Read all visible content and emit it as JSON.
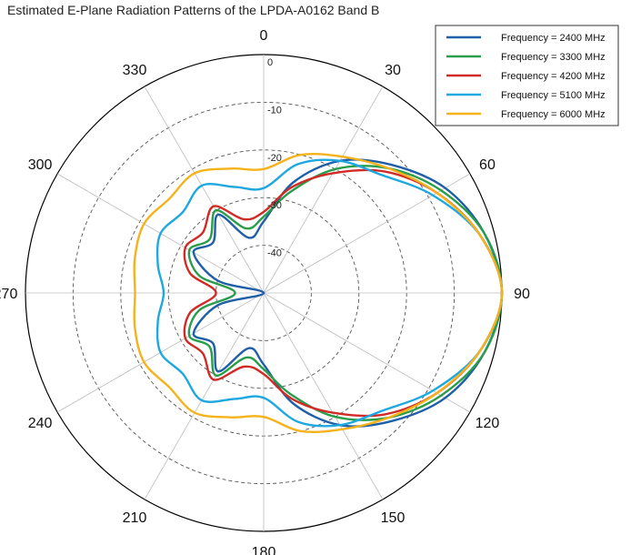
{
  "chart_data": {
    "type": "line",
    "subtype": "polar",
    "title": "Estimated E-Plane Radiation Patterns of the LPDA-A0162 Band B",
    "theta_zero": "top",
    "theta_direction": "clockwise",
    "angle_ticks": [
      0,
      30,
      60,
      90,
      120,
      150,
      180,
      210,
      240,
      270,
      300,
      330
    ],
    "angle_tick_labels": [
      "0",
      "30",
      "60",
      "90",
      "120",
      "150",
      "180",
      "210",
      "240",
      "270",
      "300",
      "330"
    ],
    "r_range": [
      -50,
      0
    ],
    "r_ticks": [
      0,
      -10,
      -20,
      -30,
      -40
    ],
    "r_tick_labels": [
      "0",
      "-10",
      "-20",
      "-30",
      "-40"
    ],
    "grid": true,
    "legend_position": "top-right",
    "series": [
      {
        "name": "Frequency = 2400 MHz",
        "color": "#1f5fa8",
        "theta": [
          0,
          15,
          30,
          45,
          60,
          75,
          90,
          105,
          120,
          135,
          150,
          165,
          180,
          195,
          210,
          225,
          240,
          255,
          270,
          285,
          300,
          315,
          330,
          345,
          360
        ],
        "r": [
          -35,
          -26,
          -18,
          -12,
          -6,
          -2,
          0,
          -2,
          -6,
          -12,
          -18,
          -26,
          -35,
          -38,
          -31,
          -35,
          -33,
          -40,
          -50,
          -40,
          -33,
          -35,
          -31,
          -38,
          -35
        ]
      },
      {
        "name": "Frequency = 3300 MHz",
        "color": "#2a9d4a",
        "theta": [
          0,
          15,
          30,
          45,
          60,
          75,
          90,
          105,
          120,
          135,
          150,
          165,
          180,
          195,
          210,
          225,
          240,
          255,
          270,
          285,
          300,
          315,
          330,
          345,
          360
        ],
        "r": [
          -34,
          -28,
          -20,
          -13,
          -7,
          -2,
          0,
          -2,
          -7,
          -13,
          -20,
          -28,
          -34,
          -36,
          -30,
          -34,
          -32,
          -36,
          -44,
          -36,
          -32,
          -34,
          -30,
          -36,
          -34
        ]
      },
      {
        "name": "Frequency = 4200 MHz",
        "color": "#d02b27",
        "theta": [
          0,
          15,
          30,
          45,
          60,
          75,
          90,
          105,
          120,
          135,
          150,
          165,
          180,
          195,
          210,
          225,
          240,
          255,
          270,
          285,
          300,
          315,
          330,
          345,
          360
        ],
        "r": [
          -33,
          -27,
          -21,
          -14,
          -8,
          -3,
          0,
          -3,
          -8,
          -14,
          -21,
          -27,
          -33,
          -34,
          -29,
          -32,
          -31,
          -34,
          -40,
          -34,
          -31,
          -32,
          -29,
          -34,
          -33
        ]
      },
      {
        "name": "Frequency = 5100 MHz",
        "color": "#1fa8e0",
        "theta": [
          0,
          15,
          30,
          45,
          60,
          75,
          90,
          105,
          120,
          135,
          150,
          165,
          180,
          195,
          210,
          225,
          240,
          255,
          270,
          285,
          300,
          315,
          330,
          345,
          360
        ],
        "r": [
          -28,
          -22,
          -18,
          -15,
          -9,
          -3,
          0,
          -3,
          -9,
          -15,
          -18,
          -22,
          -28,
          -27,
          -24,
          -26,
          -25,
          -27,
          -29,
          -27,
          -25,
          -26,
          -24,
          -27,
          -28
        ]
      },
      {
        "name": "Frequency = 6000 MHz",
        "color": "#f5b21b",
        "theta": [
          0,
          15,
          30,
          45,
          60,
          75,
          90,
          105,
          120,
          135,
          150,
          165,
          180,
          195,
          210,
          225,
          240,
          255,
          270,
          285,
          300,
          315,
          330,
          345,
          360
        ],
        "r": [
          -24,
          -20,
          -17,
          -13,
          -8,
          -3,
          0,
          -3,
          -8,
          -13,
          -17,
          -20,
          -24,
          -23,
          -21,
          -22,
          -21,
          -22,
          -23,
          -22,
          -21,
          -22,
          -21,
          -23,
          -24
        ]
      }
    ]
  }
}
